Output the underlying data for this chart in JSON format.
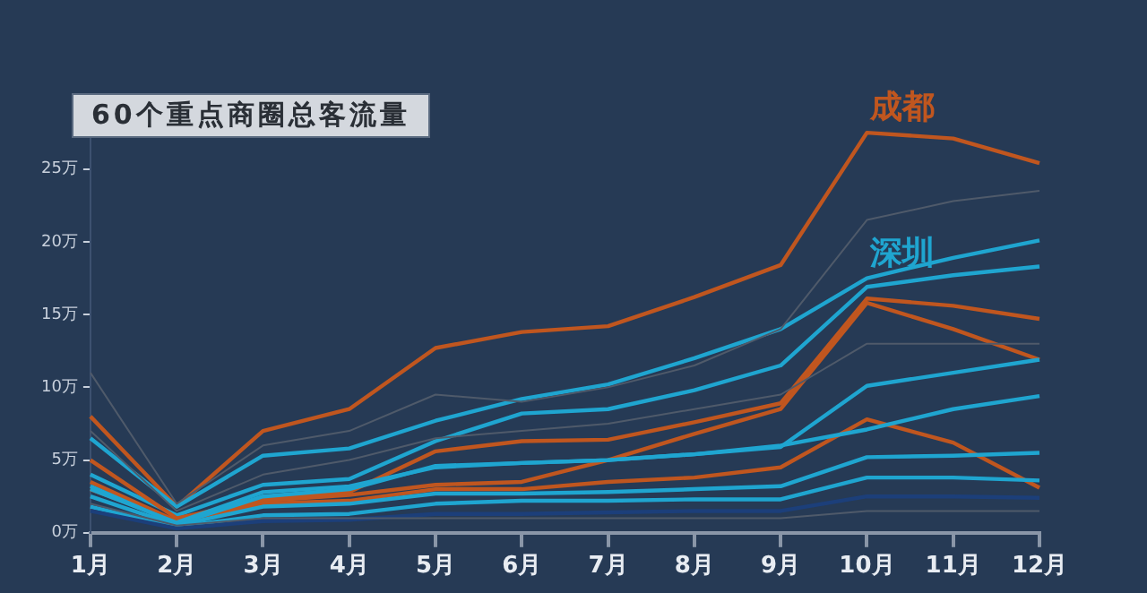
{
  "chart_data": {
    "type": "line",
    "title": "60个重点商圈总客流量",
    "categories": [
      "1月",
      "2月",
      "3月",
      "4月",
      "5月",
      "6月",
      "7月",
      "8月",
      "9月",
      "10月",
      "11月",
      "12月"
    ],
    "ylim": [
      0,
      28
    ],
    "yticks": [
      {
        "value": 0,
        "label": "0万"
      },
      {
        "value": 5,
        "label": "5万"
      },
      {
        "value": 10,
        "label": "10万"
      },
      {
        "value": 15,
        "label": "15万"
      },
      {
        "value": 20,
        "label": "20万"
      },
      {
        "value": 25,
        "label": "25万"
      }
    ],
    "grid": false,
    "legend": false,
    "marker": "none",
    "line_style": "solid",
    "annotations": [
      {
        "text": "成都",
        "x": "10月",
        "y": 27.5
      },
      {
        "text": "深圳",
        "x": "10月",
        "y": 17.5
      }
    ],
    "series": [
      {
        "color": "#4f5a6a",
        "values": [
          11,
          2,
          6,
          7,
          9.5,
          9,
          10,
          11.5,
          14,
          21.5,
          22.8,
          23.5
        ]
      },
      {
        "color": "#4f5a6a",
        "values": [
          7,
          1.5,
          4,
          5,
          6.5,
          7,
          7.5,
          8.5,
          9.5,
          13,
          13,
          13
        ]
      },
      {
        "color": "#4f5a6a",
        "values": [
          2,
          0.5,
          1,
          1,
          1,
          1,
          1,
          1,
          1,
          1.5,
          1.5,
          1.5
        ]
      },
      {
        "color": "#1c3f7a",
        "values": [
          1.5,
          0.3,
          0.8,
          0.9,
          1.3,
          1.3,
          1.4,
          1.5,
          1.5,
          2.5,
          2.5,
          2.4
        ]
      },
      {
        "color": "#1fa5d0",
        "values": [
          1.8,
          0.4,
          1.2,
          1.3,
          2.0,
          2.2,
          2.2,
          2.3,
          2.3,
          3.8,
          3.8,
          3.6
        ]
      },
      {
        "color": "#1fa5d0",
        "values": [
          2.5,
          0.5,
          1.8,
          2,
          2.7,
          2.7,
          2.8,
          3,
          3.2,
          5.2,
          5.3,
          5.5
        ]
      },
      {
        "color": "#1fa5d0",
        "values": [
          3,
          0.7,
          2.8,
          3.2,
          4.5,
          4.8,
          5,
          5.4,
          6,
          7.1,
          8.5,
          9.4
        ]
      },
      {
        "color": "#1fa5d0",
        "values": [
          3.2,
          0.6,
          2.5,
          3,
          4.6,
          4.8,
          5,
          5.4,
          5.9,
          10.1,
          11,
          11.9
        ]
      },
      {
        "color": "#c0561f",
        "values": [
          3.5,
          0.8,
          2,
          2.2,
          3,
          3,
          3.5,
          3.8,
          4.5,
          7.8,
          6.2,
          3.1
        ]
      },
      {
        "color": "#c0561f",
        "values": [
          3,
          0.8,
          2.2,
          2.6,
          3.3,
          3.5,
          5,
          6.8,
          8.5,
          15.8,
          14,
          11.9
        ]
      },
      {
        "color": "#c0561f",
        "values": [
          5,
          1,
          2.3,
          2.8,
          5.6,
          6.3,
          6.4,
          7.6,
          8.9,
          16.1,
          15.6,
          14.7
        ]
      },
      {
        "color": "#1fa5d0",
        "values": [
          4,
          1.2,
          3.3,
          3.7,
          6.3,
          8.2,
          8.5,
          9.8,
          11.5,
          16.9,
          17.7,
          18.3
        ]
      },
      {
        "color": "#1fa5d0",
        "values": [
          6.5,
          1.8,
          5.3,
          5.8,
          7.7,
          9.2,
          10.2,
          12,
          14,
          17.5,
          18.9,
          20.1
        ]
      },
      {
        "color": "#c0561f",
        "values": [
          8,
          1.8,
          7,
          8.5,
          12.7,
          13.8,
          14.2,
          16.2,
          18.4,
          27.5,
          27.1,
          25.4
        ]
      }
    ]
  }
}
